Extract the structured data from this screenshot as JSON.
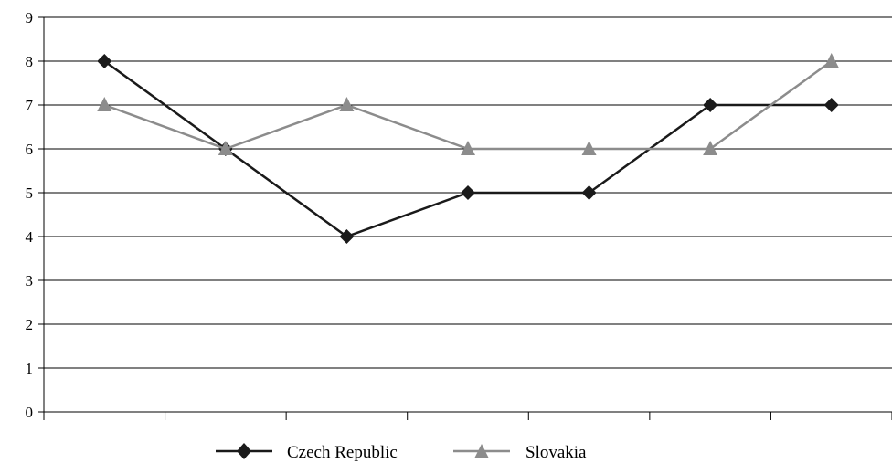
{
  "chart_data": {
    "type": "line",
    "title": "",
    "xlabel": "",
    "ylabel": "",
    "categories": [
      "",
      "",
      "",
      "",
      "",
      "",
      ""
    ],
    "ylim": [
      0,
      9
    ],
    "yticks": [
      "0",
      "1",
      "2",
      "3",
      "4",
      "5",
      "6",
      "7",
      "8",
      "9"
    ],
    "grid": true,
    "legend_position": "bottom",
    "series": [
      {
        "name": "Czech Republic",
        "values": [
          8,
          6,
          4,
          5,
          5,
          7,
          7
        ],
        "color": "#1a1a1a",
        "marker": "diamond"
      },
      {
        "name": "Slovakia",
        "values": [
          7,
          6,
          7,
          6,
          6,
          6,
          8
        ],
        "color": "#8c8c8c",
        "marker": "triangle"
      }
    ]
  }
}
